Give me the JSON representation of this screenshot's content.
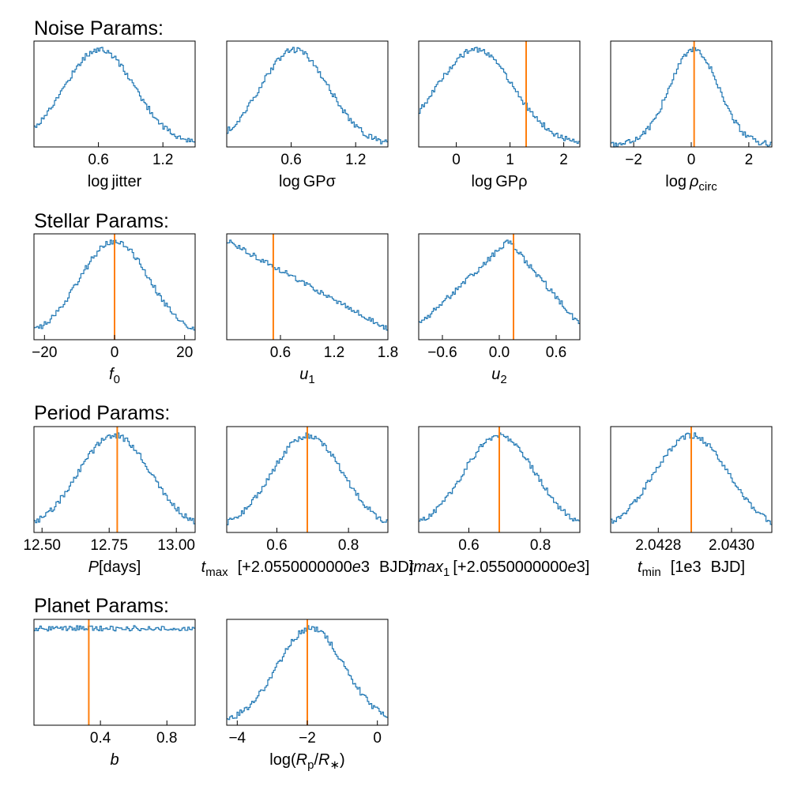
{
  "colors": {
    "hist": "#1f77b4",
    "truth": "#ff7f0e",
    "axes": "#000000",
    "background": "#ffffff"
  },
  "sections": [
    {
      "title": "Noise Params:"
    },
    {
      "title": "Stellar Params:"
    },
    {
      "title": "Period Params:"
    },
    {
      "title": "Planet Params:"
    }
  ],
  "chart_data": [
    {
      "type": "histogram",
      "section": 0,
      "col": 0,
      "xlabel": [
        {
          "t": "log"
        },
        {
          "t": "jitter",
          "gap": 4
        }
      ],
      "xlim": [
        0.0,
        1.5
      ],
      "ticks": [
        {
          "v": 0.6,
          "label": "0.6"
        },
        {
          "v": 1.2,
          "label": "1.2"
        }
      ],
      "dist": {
        "shape": "gauss",
        "mu": 0.61,
        "sigma": 0.33,
        "base": 0.02,
        "noise": 0.03
      },
      "truth": null
    },
    {
      "type": "histogram",
      "section": 0,
      "col": 1,
      "xlabel": [
        {
          "t": "log"
        },
        {
          "t": "GPσ",
          "gap": 4
        }
      ],
      "xlim": [
        0.0,
        1.5
      ],
      "ticks": [
        {
          "v": 0.6,
          "label": "0.6"
        },
        {
          "v": 1.2,
          "label": "1.2"
        }
      ],
      "dist": {
        "shape": "gauss",
        "mu": 0.63,
        "sigma": 0.32,
        "base": 0.02,
        "noise": 0.03
      },
      "truth": null
    },
    {
      "type": "histogram",
      "section": 0,
      "col": 2,
      "xlabel": [
        {
          "t": "log"
        },
        {
          "t": "GPρ",
          "gap": 4
        }
      ],
      "xlim": [
        -0.7,
        2.3
      ],
      "ticks": [
        {
          "v": 0,
          "label": "0"
        },
        {
          "v": 1,
          "label": "1"
        },
        {
          "v": 2,
          "label": "2"
        }
      ],
      "dist": {
        "shape": "gauss",
        "mu": 0.35,
        "sigma": 0.72,
        "base": 0.02,
        "noise": 0.03
      },
      "truth": 1.3
    },
    {
      "type": "histogram",
      "section": 0,
      "col": 3,
      "xlabel": [
        {
          "t": "log"
        },
        {
          "t": "ρ",
          "it": true,
          "gap": 4
        },
        {
          "t": "circ",
          "sub": true
        }
      ],
      "xlim": [
        -2.8,
        2.8
      ],
      "ticks": [
        {
          "v": -2,
          "label": "−2"
        },
        {
          "v": 0,
          "label": "0"
        },
        {
          "v": 2,
          "label": "2"
        }
      ],
      "dist": {
        "shape": "gauss",
        "mu": 0.1,
        "sigma": 0.85,
        "base": 0.02,
        "noise": 0.03
      },
      "truth": 0.1
    },
    {
      "type": "histogram",
      "section": 1,
      "col": 0,
      "xlabel": [
        {
          "t": "f",
          "it": true
        },
        {
          "t": "0",
          "sub": true
        }
      ],
      "xlim": [
        -23,
        23
      ],
      "ticks": [
        {
          "v": -20,
          "label": "−20"
        },
        {
          "v": 0,
          "label": "0"
        },
        {
          "v": 20,
          "label": "20"
        }
      ],
      "dist": {
        "shape": "gauss",
        "mu": 0,
        "sigma": 10,
        "base": 0.02,
        "noise": 0.03
      },
      "truth": 0
    },
    {
      "type": "histogram",
      "section": 1,
      "col": 1,
      "xlabel": [
        {
          "t": "u",
          "it": true
        },
        {
          "t": "1",
          "sub": true
        }
      ],
      "xlim": [
        0,
        1.8
      ],
      "ticks": [
        {
          "v": 0.6,
          "label": "0.6"
        },
        {
          "v": 1.2,
          "label": "1.2"
        },
        {
          "v": 1.8,
          "label": "1.8"
        }
      ],
      "dist": {
        "shape": "linear",
        "start": 0.95,
        "end": 0.1,
        "noise": 0.025
      },
      "truth": 0.52
    },
    {
      "type": "histogram",
      "section": 1,
      "col": 2,
      "xlabel": [
        {
          "t": "u",
          "it": true
        },
        {
          "t": "2",
          "sub": true
        }
      ],
      "xlim": [
        -0.85,
        0.85
      ],
      "ticks": [
        {
          "v": -0.6,
          "label": "−0.6"
        },
        {
          "v": 0,
          "label": "0.0"
        },
        {
          "v": 0.6,
          "label": "0.6"
        }
      ],
      "dist": {
        "shape": "tri",
        "peak": 0.1,
        "left": 0.15,
        "right": 0.15,
        "noise": 0.03
      },
      "truth": 0.15
    },
    {
      "type": "histogram",
      "section": 2,
      "col": 0,
      "xlabel": [
        {
          "t": "P",
          "it": true
        },
        {
          "t": "[days]"
        }
      ],
      "xlim": [
        12.47,
        13.07
      ],
      "ticks": [
        {
          "v": 12.5,
          "label": "12.50"
        },
        {
          "v": 12.75,
          "label": "12.75"
        },
        {
          "v": 13.0,
          "label": "13.00"
        }
      ],
      "dist": {
        "shape": "gauss",
        "mu": 12.77,
        "sigma": 0.135,
        "base": 0.02,
        "noise": 0.03
      },
      "truth": 12.78
    },
    {
      "type": "histogram",
      "section": 2,
      "col": 1,
      "xlabel": [
        {
          "t": "t",
          "it": true
        },
        {
          "t": "max",
          "sub": true
        },
        {
          "t": "[+2.0550000000",
          "gap": 12
        },
        {
          "t": "e",
          "it": true
        },
        {
          "t": "3"
        },
        {
          "t": "BJD]",
          "gap": 12
        }
      ],
      "xlim": [
        0.46,
        0.91
      ],
      "ticks": [
        {
          "v": 0.6,
          "label": "0.6"
        },
        {
          "v": 0.8,
          "label": "0.8"
        }
      ],
      "dist": {
        "shape": "gauss",
        "mu": 0.685,
        "sigma": 0.1,
        "base": 0.02,
        "noise": 0.03
      },
      "truth": 0.685
    },
    {
      "type": "histogram",
      "section": 2,
      "col": 2,
      "xlabel": [
        {
          "t": "tmax",
          "it": true
        },
        {
          "t": "1",
          "sub": true
        },
        {
          "t": "[+2.0550000000",
          "gap": 4
        },
        {
          "t": "e",
          "it": true
        },
        {
          "t": "3]"
        }
      ],
      "xlim": [
        0.46,
        0.91
      ],
      "ticks": [
        {
          "v": 0.6,
          "label": "0.6"
        },
        {
          "v": 0.8,
          "label": "0.8"
        }
      ],
      "dist": {
        "shape": "gauss",
        "mu": 0.685,
        "sigma": 0.1,
        "base": 0.02,
        "noise": 0.03
      },
      "truth": 0.685
    },
    {
      "type": "histogram",
      "section": 2,
      "col": 3,
      "xlabel": [
        {
          "t": "t",
          "it": true
        },
        {
          "t": "min",
          "sub": true
        },
        {
          "t": "[1e3",
          "gap": 12
        },
        {
          "t": "BJD]",
          "gap": 12
        }
      ],
      "xlim": [
        2.04267,
        2.04311
      ],
      "ticks": [
        {
          "v": 2.0428,
          "label": "2.0428"
        },
        {
          "v": 2.043,
          "label": "2.0430"
        }
      ],
      "dist": {
        "shape": "gauss",
        "mu": 2.04289,
        "sigma": 0.0001,
        "base": 0.02,
        "noise": 0.03
      },
      "truth": 2.04289
    },
    {
      "type": "histogram",
      "section": 3,
      "col": 0,
      "xlabel": [
        {
          "t": "b",
          "it": true
        }
      ],
      "xlim": [
        0,
        0.97
      ],
      "ticks": [
        {
          "v": 0.4,
          "label": "0.4"
        },
        {
          "v": 0.8,
          "label": "0.8"
        }
      ],
      "dist": {
        "shape": "flat",
        "level": 0.92,
        "noise": 0.025
      },
      "truth": 0.33
    },
    {
      "type": "histogram",
      "section": 3,
      "col": 1,
      "xlabel": [
        {
          "t": "log("
        },
        {
          "t": "R",
          "it": true
        },
        {
          "t": "p",
          "sub": true
        },
        {
          "t": "/"
        },
        {
          "t": "R",
          "it": true
        },
        {
          "t": "∗",
          "sub": true
        },
        {
          "t": ")"
        }
      ],
      "xlim": [
        -4.3,
        0.3
      ],
      "ticks": [
        {
          "v": -4,
          "label": "−4"
        },
        {
          "v": -2,
          "label": "−2"
        },
        {
          "v": 0,
          "label": "0"
        }
      ],
      "dist": {
        "shape": "gauss",
        "mu": -1.9,
        "sigma": 0.95,
        "base": 0.02,
        "noise": 0.03
      },
      "truth": -2.0
    }
  ]
}
